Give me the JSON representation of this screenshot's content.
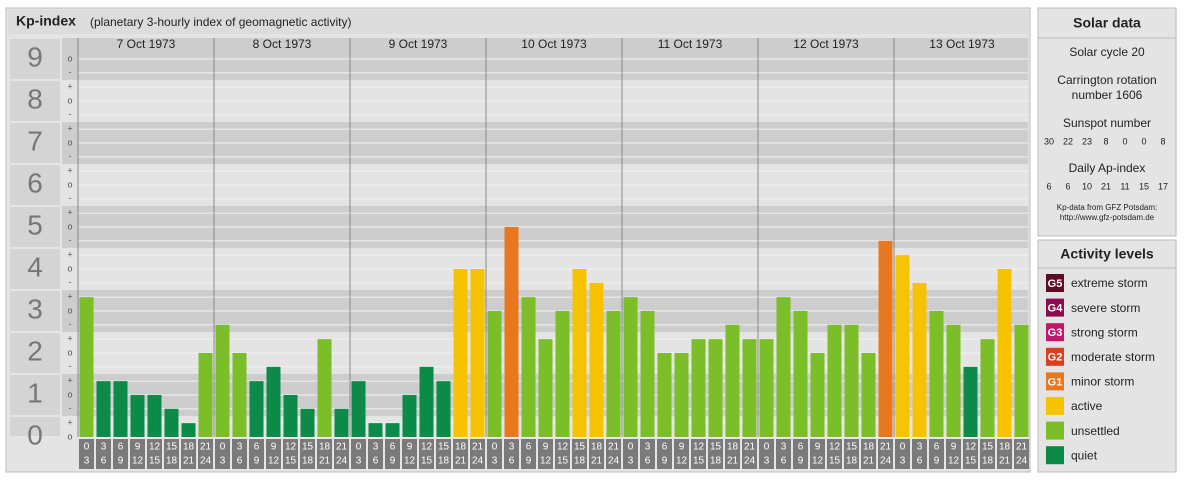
{
  "chart_data": {
    "type": "bar",
    "title": "Kp-index",
    "subtitle": "(planetary 3-hourly index of geomagnetic activity)",
    "days": [
      "7 Oct 1973",
      "8 Oct 1973",
      "9 Oct 1973",
      "10 Oct 1973",
      "11 Oct 1973",
      "12 Oct 1973",
      "13 Oct 1973"
    ],
    "time_slots": [
      {
        "start": "0",
        "end": "3"
      },
      {
        "start": "3",
        "end": "6"
      },
      {
        "start": "6",
        "end": "9"
      },
      {
        "start": "9",
        "end": "12"
      },
      {
        "start": "12",
        "end": "15"
      },
      {
        "start": "15",
        "end": "18"
      },
      {
        "start": "18",
        "end": "21"
      },
      {
        "start": "21",
        "end": "24"
      }
    ],
    "values": [
      3.33,
      1.33,
      1.33,
      1,
      1,
      0.67,
      0.33,
      2,
      2.67,
      2,
      1.33,
      1.67,
      1,
      0.67,
      2.33,
      0.67,
      1.33,
      0.33,
      0.33,
      1,
      1.67,
      1.33,
      4,
      4,
      3,
      5,
      3.33,
      2.33,
      3,
      4,
      3.67,
      3,
      3.33,
      3,
      2,
      2,
      2.33,
      2.33,
      2.67,
      2.33,
      2.33,
      3.33,
      3,
      2,
      2.67,
      2.67,
      2,
      4.67,
      4.33,
      3.67,
      3,
      2.67,
      1.67,
      2.33,
      4,
      2.67
    ],
    "colors": [
      "#7cbd2a",
      "#0b8a48",
      "#0b8a48",
      "#0b8a48",
      "#0b8a48",
      "#0b8a48",
      "#0b8a48",
      "#7cbd2a",
      "#7cbd2a",
      "#7cbd2a",
      "#0b8a48",
      "#0b8a48",
      "#0b8a48",
      "#0b8a48",
      "#7cbd2a",
      "#0b8a48",
      "#0b8a48",
      "#0b8a48",
      "#0b8a48",
      "#0b8a48",
      "#0b8a48",
      "#0b8a48",
      "#f7c300",
      "#f7c300",
      "#7cbd2a",
      "#e8771e",
      "#7cbd2a",
      "#7cbd2a",
      "#7cbd2a",
      "#f7c300",
      "#f7c300",
      "#7cbd2a",
      "#7cbd2a",
      "#7cbd2a",
      "#7cbd2a",
      "#7cbd2a",
      "#7cbd2a",
      "#7cbd2a",
      "#7cbd2a",
      "#7cbd2a",
      "#7cbd2a",
      "#7cbd2a",
      "#7cbd2a",
      "#7cbd2a",
      "#7cbd2a",
      "#7cbd2a",
      "#7cbd2a",
      "#e8771e",
      "#f7c300",
      "#f7c300",
      "#7cbd2a",
      "#7cbd2a",
      "#0b8a48",
      "#7cbd2a",
      "#f7c300",
      "#7cbd2a"
    ],
    "ylim": [
      0,
      9.5
    ],
    "yticks": [
      0,
      1,
      2,
      3,
      4,
      5,
      6,
      7,
      8,
      9
    ],
    "yticks_minor": [
      {
        "value": 0,
        "label": "o"
      },
      {
        "value": 0.33,
        "label": "+"
      },
      {
        "value": 0.67,
        "label": "-"
      },
      {
        "value": 1,
        "label": "o"
      },
      {
        "value": 1.33,
        "label": "+"
      },
      {
        "value": 1.67,
        "label": "-"
      },
      {
        "value": 2,
        "label": "o"
      },
      {
        "value": 2.33,
        "label": "+"
      },
      {
        "value": 2.67,
        "label": "-"
      },
      {
        "value": 3,
        "label": "o"
      },
      {
        "value": 3.33,
        "label": "+"
      },
      {
        "value": 3.67,
        "label": "-"
      },
      {
        "value": 4,
        "label": "o"
      },
      {
        "value": 4.33,
        "label": "+"
      },
      {
        "value": 4.67,
        "label": "-"
      },
      {
        "value": 5,
        "label": "o"
      },
      {
        "value": 5.33,
        "label": "+"
      },
      {
        "value": 5.67,
        "label": "-"
      },
      {
        "value": 6,
        "label": "o"
      },
      {
        "value": 6.33,
        "label": "+"
      },
      {
        "value": 6.67,
        "label": "-"
      },
      {
        "value": 7,
        "label": "o"
      },
      {
        "value": 7.33,
        "label": "+"
      },
      {
        "value": 7.67,
        "label": "-"
      },
      {
        "value": 8,
        "label": "o"
      },
      {
        "value": 8.33,
        "label": "+"
      },
      {
        "value": 8.67,
        "label": "-"
      },
      {
        "value": 9,
        "label": "o"
      }
    ]
  },
  "solar_data": {
    "title": "Solar data",
    "cycle": "Solar cycle 20",
    "carrington": [
      "Carrington rotation",
      "number 1606"
    ],
    "sunspot_title": "Sunspot number",
    "sunspot_numbers": [
      "30",
      "22",
      "23",
      "8",
      "0",
      "0",
      "8"
    ],
    "ap_title": "Daily Ap-index",
    "ap_values": [
      "6",
      "6",
      "10",
      "21",
      "11",
      "15",
      "17"
    ],
    "source": [
      "Kp-data from GFZ Potsdam:",
      "http://www.gfz-potsdam.de"
    ]
  },
  "activity_levels": {
    "title": "Activity levels",
    "items": [
      {
        "code": "G5",
        "label": "extreme storm",
        "color": "#5c0b2a"
      },
      {
        "code": "G4",
        "label": "severe storm",
        "color": "#8a0c4e"
      },
      {
        "code": "G3",
        "label": "strong storm",
        "color": "#c0186a"
      },
      {
        "code": "G2",
        "label": "moderate storm",
        "color": "#d8401e"
      },
      {
        "code": "G1",
        "label": "minor storm",
        "color": "#e8771e"
      },
      {
        "label": "active",
        "color": "#f7c300"
      },
      {
        "label": "unsettled",
        "color": "#7cbd2a"
      },
      {
        "label": "quiet",
        "color": "#0b8a48"
      }
    ]
  }
}
